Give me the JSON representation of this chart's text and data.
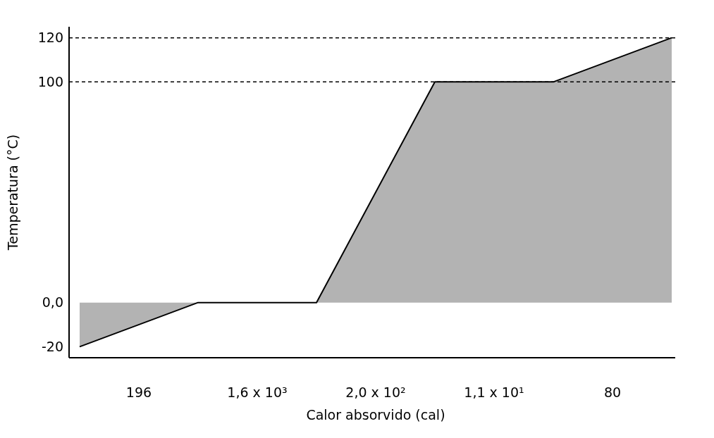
{
  "chart_data": {
    "type": "area",
    "xlabel": "Calor absorvido (cal)",
    "ylabel": "Temperatura (°C)",
    "categories": [
      null,
      null,
      null,
      null,
      null,
      null
    ],
    "series": [
      {
        "color": "#b3b3b3",
        "values": [
          -20,
          0,
          0,
          100,
          100,
          120
        ]
      }
    ],
    "ylim": [
      -25,
      125
    ],
    "yticks": [
      -20,
      {
        "value": 0,
        "label": "0,0"
      },
      100,
      120
    ],
    "tick_labels": "y",
    "grid": false,
    "legend": false,
    "ref_lines": [
      {
        "axis": "y",
        "value": 100,
        "line_style": "dashed",
        "color": "#000000"
      },
      {
        "axis": "y",
        "value": 120,
        "line_style": "dashed",
        "color": "#000000"
      }
    ],
    "annotations": [
      "196",
      "1,6 x 10³",
      "2,0 x 10²",
      "1,1 x 10¹",
      "80"
    ]
  }
}
